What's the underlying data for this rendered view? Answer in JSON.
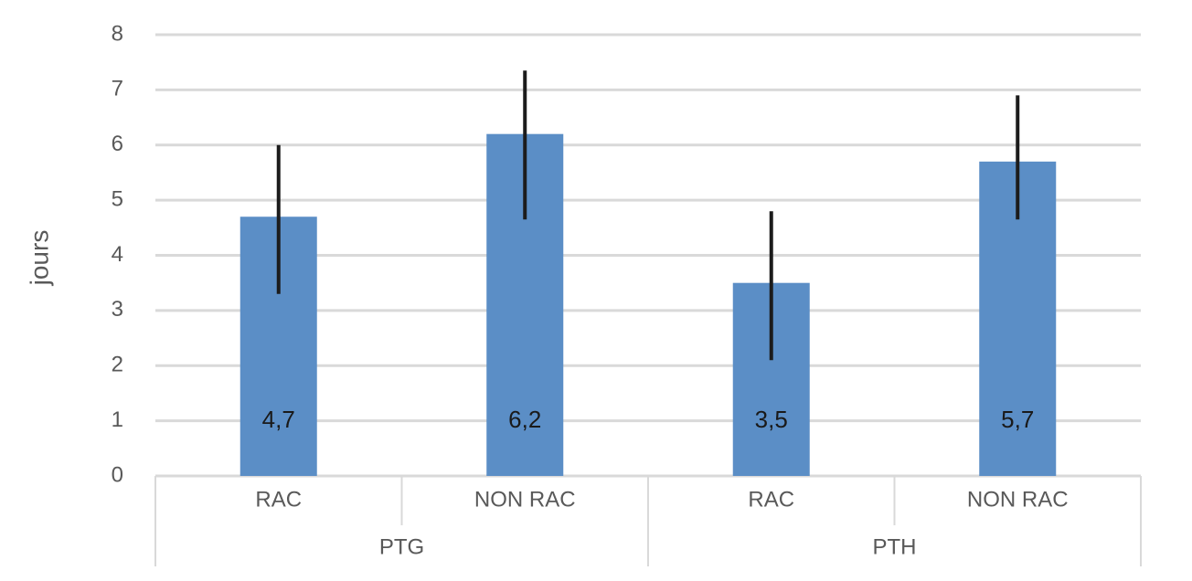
{
  "chart_data": {
    "type": "bar",
    "y_label": "jours",
    "categories": [
      "RAC",
      "NON RAC",
      "RAC",
      "NON RAC"
    ],
    "groups": [
      "PTG",
      "PTH"
    ],
    "values": [
      4.7,
      6.2,
      3.5,
      5.7
    ],
    "value_labels": [
      "4,7",
      "6,2",
      "3,5",
      "5,7"
    ],
    "error_minus": [
      1.4,
      1.55,
      1.4,
      1.05
    ],
    "error_plus": [
      1.3,
      1.15,
      1.3,
      1.2
    ],
    "color": "#5b8ec6",
    "error_color": "#1c1c1c",
    "ylim": [
      0,
      8
    ],
    "yticks": [
      0,
      1,
      2,
      3,
      4,
      5,
      6,
      7,
      8
    ],
    "grid": true
  }
}
